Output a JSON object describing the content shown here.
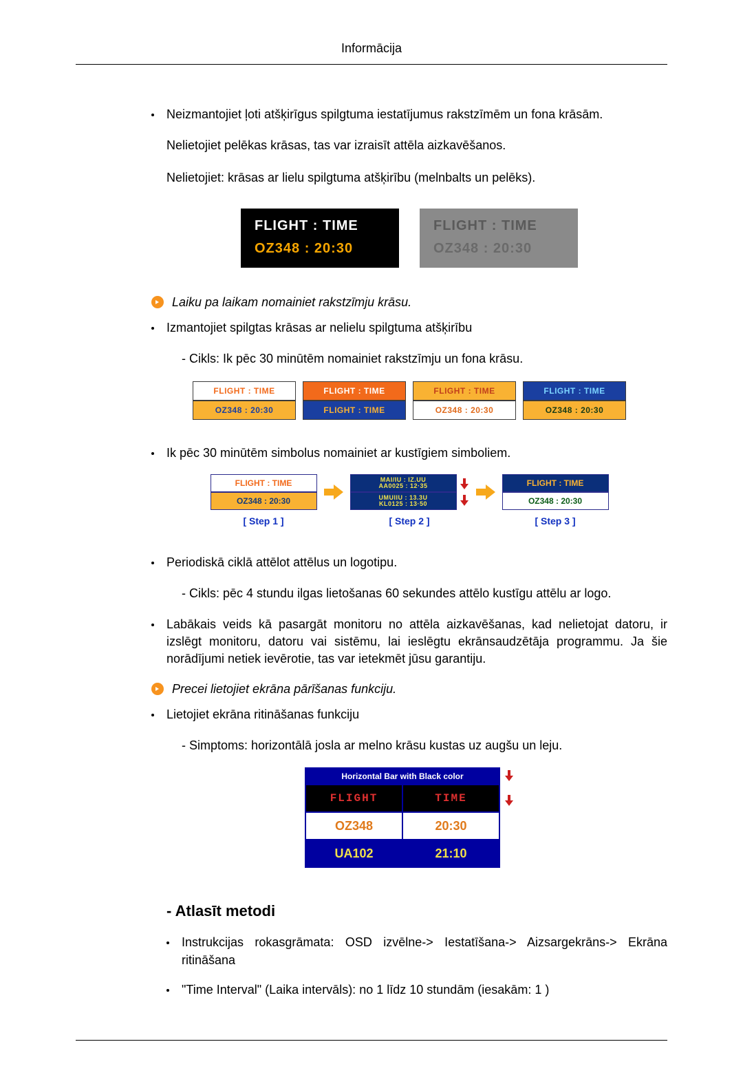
{
  "header": {
    "title": "Informācija"
  },
  "intro": {
    "bullet1": "Neizmantojiet ļoti atšķirīgus spilgtuma iestatījumus rakstzīmēm un fona krāsām.",
    "line2": "Nelietojiet pelēkas krāsas, tas var izraisīt attēla aizkavēšanos.",
    "line3": "Nelietojiet: krāsas ar lielu spilgtuma atšķirību (melnbalts un pelēks)."
  },
  "fig1": {
    "left": {
      "row1": "FLIGHT  :  TIME",
      "row2": "OZ348     :  20:30",
      "bg": "#000000",
      "row1_color": "#ffffff",
      "row2_color": "#f7a600"
    },
    "right": {
      "row1": "FLIGHT  :  TIME",
      "row2": "OZ348    :  20:30",
      "bg": "#8a8a8a",
      "row1_color": "#5c5c5c",
      "row2_color": "#6a6a6a"
    }
  },
  "arrow1": {
    "text": "Laiku pa laikam nomainiet rakstzīmju krāsu."
  },
  "section2": {
    "bullet": "Izmantojiet spilgtas krāsas ar nelielu spilgtuma atšķirību",
    "sub": "- Cikls: Ik pēc 30 minūtēm nomainiet rakstzīmju un fona krāsu."
  },
  "fig2": {
    "cards": [
      {
        "top_bg": "#ffffff",
        "top_fg": "#f26a1b",
        "top_text": "FLIGHT : TIME",
        "bot_bg": "#f9b233",
        "bot_fg": "#1a3fa0",
        "bot_text": "OZ348   : 20:30"
      },
      {
        "top_bg": "#f26a1b",
        "top_fg": "#ffffff",
        "top_text": "FLIGHT : TIME",
        "bot_bg": "#1a3fa0",
        "bot_fg": "#f9b233",
        "bot_text": "FLIGHT : TIME"
      },
      {
        "top_bg": "#f9b233",
        "top_fg": "#c13f1b",
        "top_text": "FLIGHT : TIME",
        "bot_bg": "#ffffff",
        "bot_fg": "#e06a1b",
        "bot_text": "OZ348   : 20:30"
      },
      {
        "top_bg": "#1a3fa0",
        "top_fg": "#7cd4ff",
        "top_text": "FLIGHT : TIME",
        "bot_bg": "#f9b233",
        "bot_fg": "#163a16",
        "bot_text": "OZ348   : 20:30"
      }
    ]
  },
  "section3": {
    "bullet": "Ik pēc 30 minūtēm simbolus nomainiet ar kustīgiem simboliem."
  },
  "fig3": {
    "step_color": "#1030c0",
    "arrow_color": "#f7a81b",
    "down_arrow_color": "#cc1e1e",
    "steps": [
      {
        "label": "[  Step 1  ]",
        "top_bg": "#ffffff",
        "top_fg": "#f26a1b",
        "top_text": "FLIGHT : TIME",
        "bot_bg": "#f9b233",
        "bot_fg": "#143a7a",
        "bot_text": "OZ348   : 20:30",
        "blurred": false
      },
      {
        "label": "[  Step 2  ]",
        "top_bg": "#0b2f7a",
        "bot_bg": "#0b2f7a",
        "blurred": true,
        "top_lines": [
          "MAI/IU : IZ.UU",
          "AA0025 : 12·35"
        ],
        "bot_lines": [
          "UMUIIU : 13.3U",
          "KL0125 : 13·50"
        ]
      },
      {
        "label": "[  Step 3  ]",
        "top_bg": "#0b2f7a",
        "top_fg": "#f9b233",
        "top_text": "FLIGHT : TIME",
        "bot_bg": "#ffffff",
        "bot_fg": "#0b5c16",
        "bot_text": "OZ348   : 20:30",
        "blurred": false
      }
    ]
  },
  "section4": {
    "bullet": "Periodiskā ciklā attēlot attēlus un logotipu.",
    "sub": "- Cikls: pēc 4 stundu ilgas lietošanas 60 sekundes attēlo kustīgu attēlu ar logo."
  },
  "section5": {
    "bullet": "Labākais veids kā pasargāt monitoru no attēla aizkavēšanas, kad nelietojat datoru, ir izslēgt monitoru, datoru vai sistēmu, lai ieslēgtu ekrānsaudzētāja programmu. Ja šie norādījumi netiek ievērotie, tas var ietekmēt jūsu garantiju."
  },
  "arrow2": {
    "text": "Precei lietojiet ekrāna pārīšanas funkciju."
  },
  "section6": {
    "bullet": "Lietojiet ekrāna ritināšanas funkciju",
    "sub": "- Simptoms: horizontālā josla ar melno krāsu kustas uz augšu un leju."
  },
  "fig4": {
    "header": "Horizontal Bar with Black color",
    "border_color": "#0000a0",
    "down_arrow_color": "#cc1e1e",
    "rows": [
      {
        "c1": "FLIGHT",
        "c2": "TIME",
        "bg": "#000000",
        "fg": "#e03030",
        "pixel": true
      },
      {
        "c1": "OZ348",
        "c2": "20:30",
        "bg": "#ffffff",
        "fg": "#e07a1b",
        "pixel": false
      },
      {
        "c1": "UA102",
        "c2": "21:10",
        "bg": "#0000a0",
        "fg": "#f2e24a",
        "pixel": false
      }
    ]
  },
  "method": {
    "title": "- Atlasīt metodi",
    "bullet1": "Instrukcijas rokasgrāmata: OSD izvēlne-> Iestatīšana-> Aizsargekrāns-> Ekrāna ritināšana",
    "bullet2": "\"Time Interval\" (Laika intervāls): no 1 līdz 10 stundām (iesakām: 1 )"
  }
}
